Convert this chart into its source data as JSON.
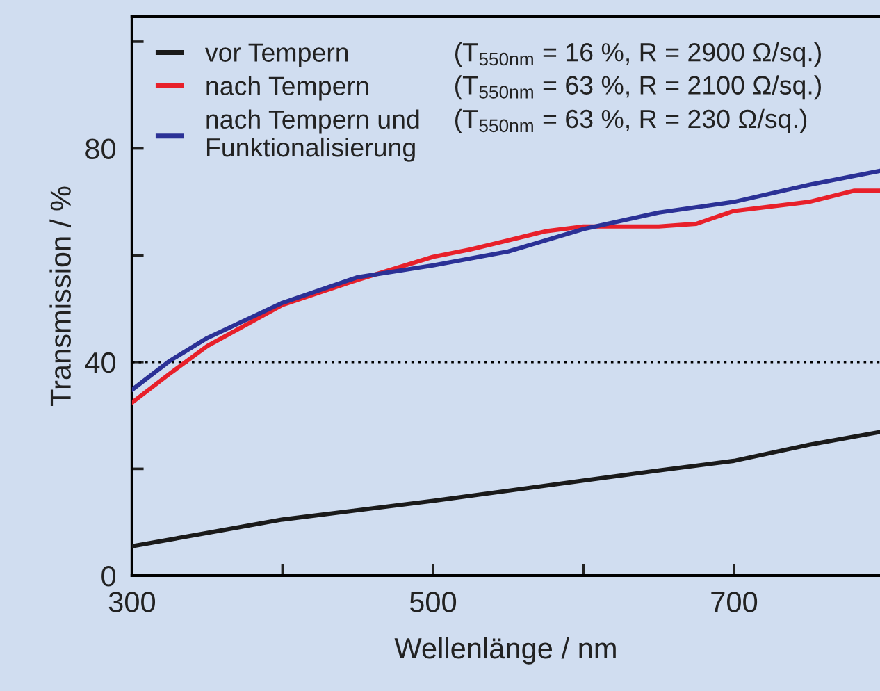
{
  "chart_data": {
    "type": "line",
    "xlabel": "Wellenlänge / nm",
    "ylabel": "Transmission / %",
    "xlim": [
      300,
      797
    ],
    "ylim": [
      0,
      104.7
    ],
    "xticks": [
      300,
      {
        "value": 400,
        "label": null
      },
      500,
      {
        "value": 600,
        "label": null
      },
      700
    ],
    "yticks": [
      0,
      {
        "value": 20,
        "label": null
      },
      40,
      {
        "value": 60,
        "label": null
      },
      80,
      {
        "value": 100,
        "label": null
      }
    ],
    "grid": false,
    "legend": "top left",
    "line_style": "solid",
    "marker": "none",
    "ref_lines": [
      {
        "axis": "y",
        "value": 40,
        "line_style": "dotted",
        "color": "#000000"
      }
    ],
    "series": [
      {
        "name": "vor Tempern",
        "color": "#1a1a1a",
        "x": [
          300,
          400,
          500,
          600,
          650,
          700,
          750,
          797
        ],
        "values": [
          5.5,
          10.5,
          14.0,
          17.8,
          19.7,
          21.5,
          24.5,
          26.9
        ]
      },
      {
        "name": "nach Tempern",
        "color": "#e8202a",
        "x": [
          300,
          325,
          350,
          400,
          450,
          500,
          525,
          550,
          575,
          600,
          625,
          650,
          675,
          700,
          750,
          780,
          797
        ],
        "values": [
          32.4,
          37.8,
          43.0,
          50.7,
          55.4,
          59.7,
          61.1,
          62.8,
          64.5,
          65.4,
          65.4,
          65.4,
          65.9,
          68.3,
          70.0,
          72.1,
          72.1
        ]
      },
      {
        "name": "nach Tempern und\nFunktionalisierung",
        "color": "#2b3196",
        "x": [
          300,
          325,
          350,
          400,
          450,
          500,
          550,
          600,
          650,
          700,
          750,
          797
        ],
        "values": [
          34.8,
          40.2,
          44.5,
          51.1,
          55.9,
          58.1,
          60.7,
          64.9,
          68.0,
          70.0,
          73.2,
          75.8
        ]
      }
    ],
    "annotations": [
      "(T$_{550nm}$ = 16 %, R = 2900 Ω/sq.)",
      "(T$_{550nm}$ = 63 %, R = 2100 Ω/sq.)",
      "(T$_{550nm}$ = 63 %, R = 230 Ω/sq.)"
    ]
  }
}
